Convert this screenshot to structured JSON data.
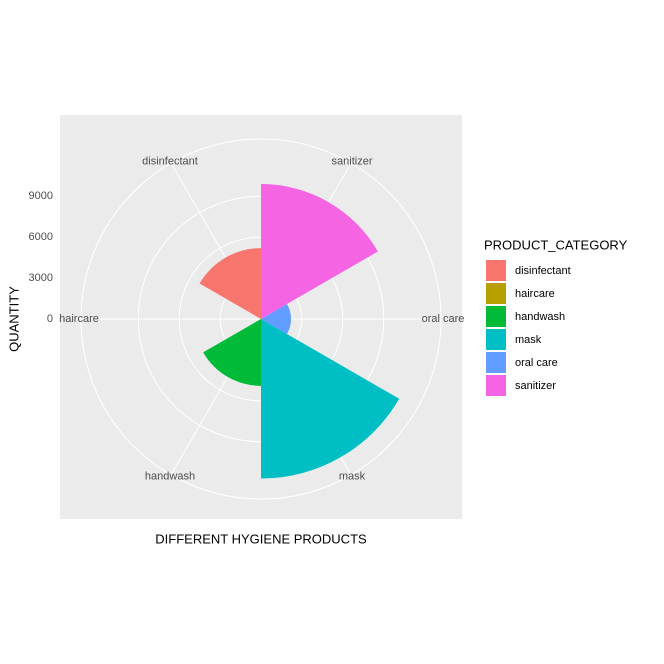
{
  "chart_data": {
    "type": "polar_bar",
    "x_label": "DIFFERENT HYGIENE PRODUCTS",
    "y_label": "QUANTITY",
    "legend_title": "PRODUCT_CATEGORY",
    "categories": [
      "disinfectant",
      "haircare",
      "handwash",
      "mask",
      "oral care",
      "sanitizer"
    ],
    "values": [
      5200,
      50,
      4900,
      11700,
      2200,
      9900
    ],
    "colors": [
      "#F8766D",
      "#B79F00",
      "#00BA38",
      "#00BFC4",
      "#619CFF",
      "#F564E3"
    ],
    "ylim": [
      0,
      13200
    ],
    "yticks": [
      0,
      3000,
      6000,
      9000
    ],
    "grid": true,
    "legend": "right"
  }
}
